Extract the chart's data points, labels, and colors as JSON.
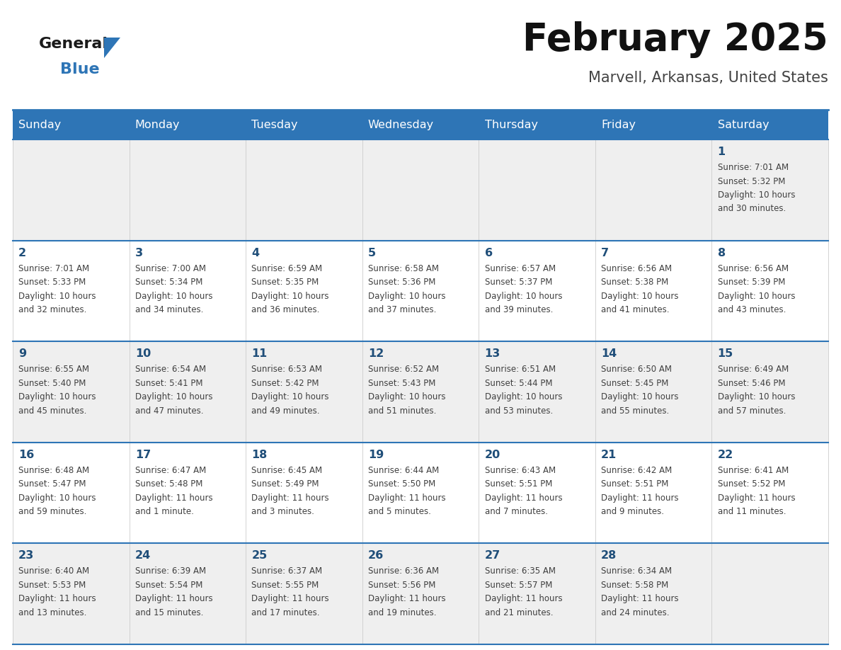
{
  "title": "February 2025",
  "subtitle": "Marvell, Arkansas, United States",
  "header_bg": "#2E75B6",
  "header_text_color": "#FFFFFF",
  "day_names": [
    "Sunday",
    "Monday",
    "Tuesday",
    "Wednesday",
    "Thursday",
    "Friday",
    "Saturday"
  ],
  "cell_bg_even": "#EFEFEF",
  "cell_bg_odd": "#FFFFFF",
  "cell_border_color": "#2E75B6",
  "day_number_color": "#1F4E79",
  "info_text_color": "#404040",
  "title_color": "#111111",
  "subtitle_color": "#444444",
  "logo_color_general": "#1A1A1A",
  "logo_color_blue": "#2E75B6",
  "logo_triangle_color": "#2E75B6",
  "weeks": [
    [
      {
        "day": null,
        "info": ""
      },
      {
        "day": null,
        "info": ""
      },
      {
        "day": null,
        "info": ""
      },
      {
        "day": null,
        "info": ""
      },
      {
        "day": null,
        "info": ""
      },
      {
        "day": null,
        "info": ""
      },
      {
        "day": 1,
        "info": "Sunrise: 7:01 AM\nSunset: 5:32 PM\nDaylight: 10 hours\nand 30 minutes."
      }
    ],
    [
      {
        "day": 2,
        "info": "Sunrise: 7:01 AM\nSunset: 5:33 PM\nDaylight: 10 hours\nand 32 minutes."
      },
      {
        "day": 3,
        "info": "Sunrise: 7:00 AM\nSunset: 5:34 PM\nDaylight: 10 hours\nand 34 minutes."
      },
      {
        "day": 4,
        "info": "Sunrise: 6:59 AM\nSunset: 5:35 PM\nDaylight: 10 hours\nand 36 minutes."
      },
      {
        "day": 5,
        "info": "Sunrise: 6:58 AM\nSunset: 5:36 PM\nDaylight: 10 hours\nand 37 minutes."
      },
      {
        "day": 6,
        "info": "Sunrise: 6:57 AM\nSunset: 5:37 PM\nDaylight: 10 hours\nand 39 minutes."
      },
      {
        "day": 7,
        "info": "Sunrise: 6:56 AM\nSunset: 5:38 PM\nDaylight: 10 hours\nand 41 minutes."
      },
      {
        "day": 8,
        "info": "Sunrise: 6:56 AM\nSunset: 5:39 PM\nDaylight: 10 hours\nand 43 minutes."
      }
    ],
    [
      {
        "day": 9,
        "info": "Sunrise: 6:55 AM\nSunset: 5:40 PM\nDaylight: 10 hours\nand 45 minutes."
      },
      {
        "day": 10,
        "info": "Sunrise: 6:54 AM\nSunset: 5:41 PM\nDaylight: 10 hours\nand 47 minutes."
      },
      {
        "day": 11,
        "info": "Sunrise: 6:53 AM\nSunset: 5:42 PM\nDaylight: 10 hours\nand 49 minutes."
      },
      {
        "day": 12,
        "info": "Sunrise: 6:52 AM\nSunset: 5:43 PM\nDaylight: 10 hours\nand 51 minutes."
      },
      {
        "day": 13,
        "info": "Sunrise: 6:51 AM\nSunset: 5:44 PM\nDaylight: 10 hours\nand 53 minutes."
      },
      {
        "day": 14,
        "info": "Sunrise: 6:50 AM\nSunset: 5:45 PM\nDaylight: 10 hours\nand 55 minutes."
      },
      {
        "day": 15,
        "info": "Sunrise: 6:49 AM\nSunset: 5:46 PM\nDaylight: 10 hours\nand 57 minutes."
      }
    ],
    [
      {
        "day": 16,
        "info": "Sunrise: 6:48 AM\nSunset: 5:47 PM\nDaylight: 10 hours\nand 59 minutes."
      },
      {
        "day": 17,
        "info": "Sunrise: 6:47 AM\nSunset: 5:48 PM\nDaylight: 11 hours\nand 1 minute."
      },
      {
        "day": 18,
        "info": "Sunrise: 6:45 AM\nSunset: 5:49 PM\nDaylight: 11 hours\nand 3 minutes."
      },
      {
        "day": 19,
        "info": "Sunrise: 6:44 AM\nSunset: 5:50 PM\nDaylight: 11 hours\nand 5 minutes."
      },
      {
        "day": 20,
        "info": "Sunrise: 6:43 AM\nSunset: 5:51 PM\nDaylight: 11 hours\nand 7 minutes."
      },
      {
        "day": 21,
        "info": "Sunrise: 6:42 AM\nSunset: 5:51 PM\nDaylight: 11 hours\nand 9 minutes."
      },
      {
        "day": 22,
        "info": "Sunrise: 6:41 AM\nSunset: 5:52 PM\nDaylight: 11 hours\nand 11 minutes."
      }
    ],
    [
      {
        "day": 23,
        "info": "Sunrise: 6:40 AM\nSunset: 5:53 PM\nDaylight: 11 hours\nand 13 minutes."
      },
      {
        "day": 24,
        "info": "Sunrise: 6:39 AM\nSunset: 5:54 PM\nDaylight: 11 hours\nand 15 minutes."
      },
      {
        "day": 25,
        "info": "Sunrise: 6:37 AM\nSunset: 5:55 PM\nDaylight: 11 hours\nand 17 minutes."
      },
      {
        "day": 26,
        "info": "Sunrise: 6:36 AM\nSunset: 5:56 PM\nDaylight: 11 hours\nand 19 minutes."
      },
      {
        "day": 27,
        "info": "Sunrise: 6:35 AM\nSunset: 5:57 PM\nDaylight: 11 hours\nand 21 minutes."
      },
      {
        "day": 28,
        "info": "Sunrise: 6:34 AM\nSunset: 5:58 PM\nDaylight: 11 hours\nand 24 minutes."
      },
      {
        "day": null,
        "info": ""
      }
    ]
  ]
}
